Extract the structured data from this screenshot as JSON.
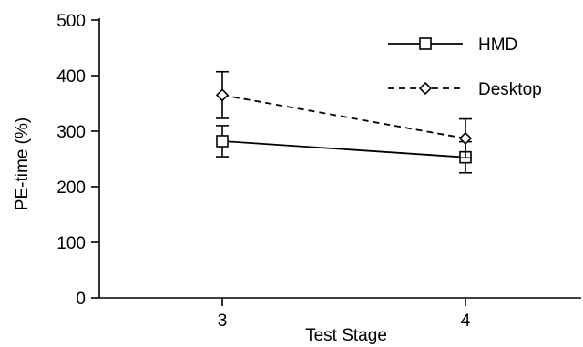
{
  "chart_data": {
    "type": "line",
    "title": "",
    "xlabel": "Test Stage",
    "ylabel": "PE-time (%)",
    "categories": [
      "3",
      "4"
    ],
    "ylim": [
      0,
      500
    ],
    "yticks": [
      "0",
      "100",
      "200",
      "300",
      "400",
      "500"
    ],
    "grid": false,
    "legend_position": "top-right",
    "series": [
      {
        "name": "HMD",
        "values": [
          282,
          253
        ],
        "error": [
          28,
          28
        ],
        "line_style": "solid",
        "marker": "square",
        "color": "#000000"
      },
      {
        "name": "Desktop",
        "values": [
          365,
          287
        ],
        "error": [
          42,
          35
        ],
        "line_style": "dashed",
        "marker": "diamond",
        "color": "#000000"
      }
    ]
  }
}
